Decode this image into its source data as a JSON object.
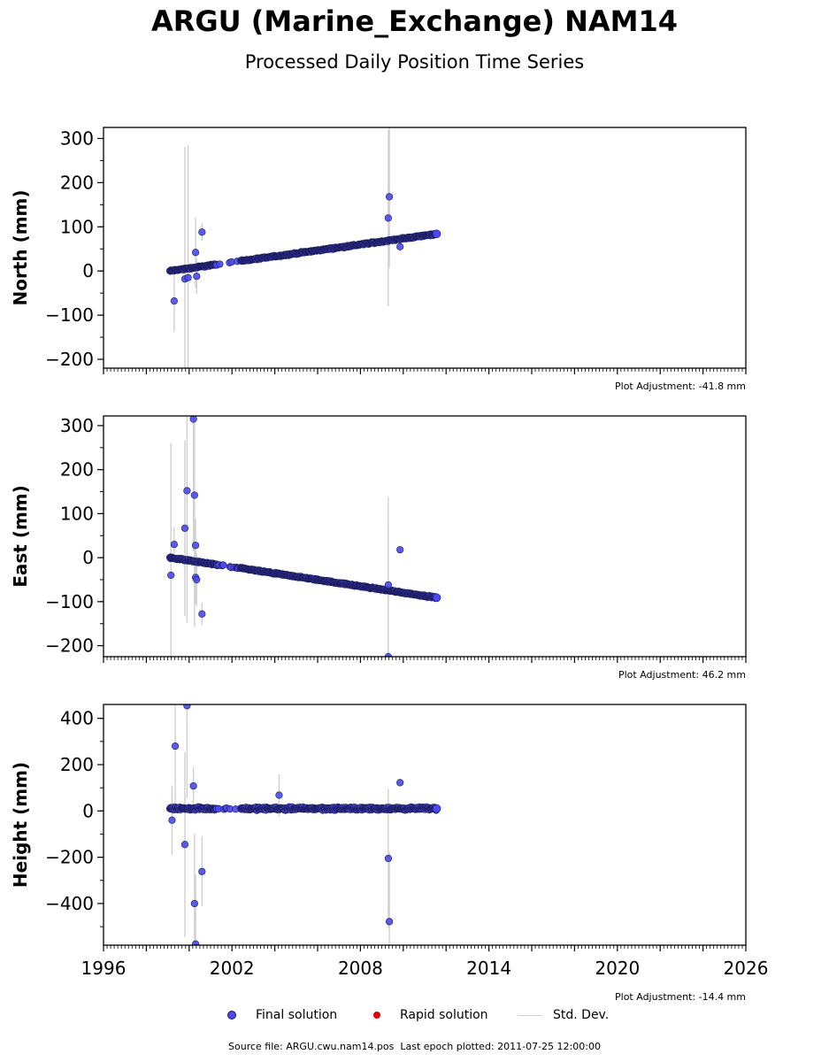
{
  "page": {
    "title": "ARGU (Marine_Exchange) NAM14",
    "subtitle": "Processed Daily Position Time Series",
    "footer": "Source file: ARGU.cwu.nam14.pos  Last epoch plotted: 2011-07-25 12:00:00"
  },
  "legend": {
    "final_label": "Final solution",
    "rapid_label": "Rapid solution",
    "std_label": "Std. Dev."
  },
  "colors": {
    "final": "#4a4af0",
    "final_edge": "#1a1a55",
    "rapid": "#e00000",
    "std": "#d0d0d0"
  },
  "chart_data": [
    {
      "type": "scatter",
      "ylabel": "North (mm)",
      "annotation": "Plot Adjustment: -41.8 mm",
      "xlim": [
        1996,
        2026
      ],
      "ylim": [
        -220,
        325
      ],
      "yticks": [
        -200,
        -100,
        0,
        100,
        200,
        300
      ],
      "yticklabels": [
        "−200",
        "−100",
        "0",
        "100",
        "200",
        "300"
      ],
      "xticks": [
        1996,
        2002,
        2008,
        2014,
        2020,
        2026
      ],
      "xticklabels": [],
      "trend": {
        "x0": 1999.1,
        "y0": 0,
        "x1": 2011.56,
        "y1": 84,
        "gap": [
          2001.3,
          2002.4
        ]
      },
      "outliers": [
        {
          "x": 1999.3,
          "y": -68,
          "err": 70
        },
        {
          "x": 1999.8,
          "y": -18,
          "err": 300
        },
        {
          "x": 1999.95,
          "y": -15,
          "err": 300
        },
        {
          "x": 2000.3,
          "y": 42,
          "err": 80
        },
        {
          "x": 2000.35,
          "y": -12,
          "err": 40
        },
        {
          "x": 2000.6,
          "y": 88,
          "err": 20
        },
        {
          "x": 2009.3,
          "y": 120,
          "err": 200
        },
        {
          "x": 2009.35,
          "y": 168,
          "err": 160
        },
        {
          "x": 2009.85,
          "y": 55,
          "err": 10
        }
      ]
    },
    {
      "type": "scatter",
      "ylabel": "East (mm)",
      "annotation": "Plot Adjustment: 46.2 mm",
      "xlim": [
        1996,
        2026
      ],
      "ylim": [
        -225,
        322
      ],
      "yticks": [
        -200,
        -100,
        0,
        100,
        200,
        300
      ],
      "yticklabels": [
        "−200",
        "−100",
        "0",
        "100",
        "200",
        "300"
      ],
      "xticks": [
        1996,
        2002,
        2008,
        2014,
        2020,
        2026
      ],
      "xticklabels": [],
      "trend": {
        "x0": 1999.1,
        "y0": 0,
        "x1": 2011.56,
        "y1": -91,
        "gap": [
          2001.3,
          2002.4
        ]
      },
      "outliers": [
        {
          "x": 1999.15,
          "y": -40,
          "err": 300
        },
        {
          "x": 1999.3,
          "y": 30,
          "err": 40
        },
        {
          "x": 1999.8,
          "y": 67,
          "err": 200
        },
        {
          "x": 1999.9,
          "y": 152,
          "err": 300
        },
        {
          "x": 2000.2,
          "y": 315,
          "err": 300
        },
        {
          "x": 2000.25,
          "y": 142,
          "err": 300
        },
        {
          "x": 2000.3,
          "y": 28,
          "err": 60
        },
        {
          "x": 2000.3,
          "y": -45,
          "err": 60
        },
        {
          "x": 2000.35,
          "y": -50,
          "err": 60
        },
        {
          "x": 2000.6,
          "y": -128,
          "err": 25
        },
        {
          "x": 2009.3,
          "y": -225,
          "err": 300
        },
        {
          "x": 2009.3,
          "y": -62,
          "err": 200
        },
        {
          "x": 2009.85,
          "y": 18,
          "err": 8
        }
      ]
    },
    {
      "type": "scatter",
      "ylabel": "Height (mm)",
      "annotation": "Plot Adjustment: -14.4 mm",
      "xlim": [
        1996,
        2026
      ],
      "ylim": [
        -580,
        460
      ],
      "yticks": [
        -400,
        -200,
        0,
        200,
        400
      ],
      "yticklabels": [
        "−400",
        "−200",
        "0",
        "200",
        "400"
      ],
      "xticks": [
        1996,
        2002,
        2008,
        2014,
        2020,
        2026
      ],
      "xticklabels": [
        "1996",
        "2002",
        "2008",
        "2014",
        "2020",
        "2026"
      ],
      "trend": {
        "x0": 1999.1,
        "y0": 10,
        "x1": 2011.56,
        "y1": 10,
        "gap": [
          2001.3,
          2002.4
        ]
      },
      "outliers": [
        {
          "x": 1999.2,
          "y": -40,
          "err": 150
        },
        {
          "x": 1999.35,
          "y": 280,
          "err": 250
        },
        {
          "x": 1999.8,
          "y": -145,
          "err": 400
        },
        {
          "x": 1999.9,
          "y": 455,
          "err": 400
        },
        {
          "x": 2000.2,
          "y": 108,
          "err": 80
        },
        {
          "x": 2000.25,
          "y": -400,
          "err": 300
        },
        {
          "x": 2000.3,
          "y": -575,
          "err": 300
        },
        {
          "x": 2000.6,
          "y": -262,
          "err": 150
        },
        {
          "x": 2004.2,
          "y": 68,
          "err": 90
        },
        {
          "x": 2009.3,
          "y": -205,
          "err": 300
        },
        {
          "x": 2009.35,
          "y": -478,
          "err": 300
        },
        {
          "x": 2009.85,
          "y": 122,
          "err": 15
        }
      ]
    }
  ]
}
